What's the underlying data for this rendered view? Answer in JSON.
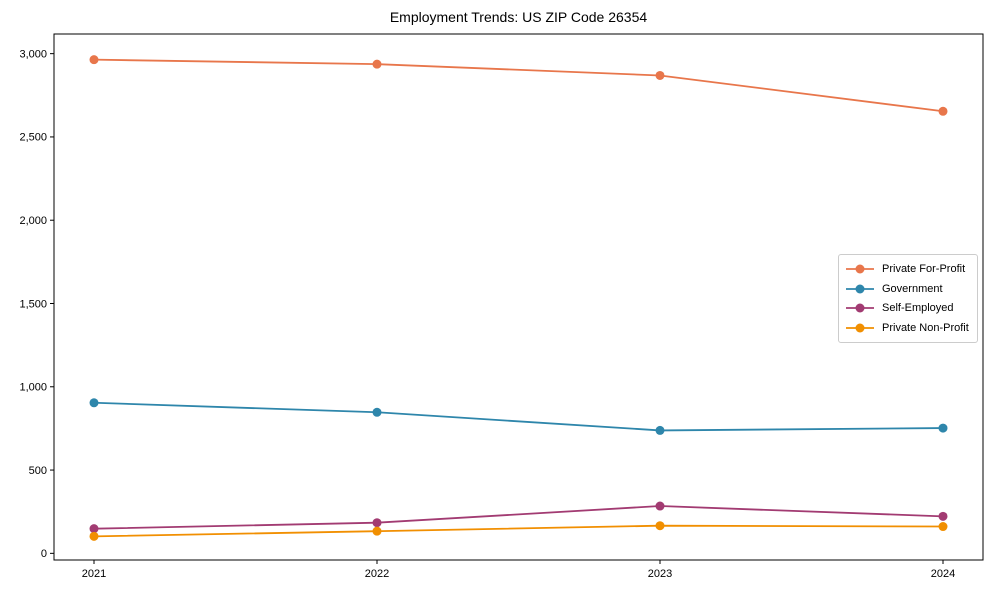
{
  "chart_data": {
    "type": "line",
    "title": "Employment Trends: US ZIP Code 26354",
    "categories": [
      "2021",
      "2022",
      "2023",
      "2024"
    ],
    "series": [
      {
        "name": "Private For-Profit",
        "color": "#E8764B",
        "values": [
          2964,
          2937,
          2869,
          2654
        ]
      },
      {
        "name": "Government",
        "color": "#2E86AB",
        "values": [
          904,
          847,
          738,
          752
        ]
      },
      {
        "name": "Self-Employed",
        "color": "#A23B72",
        "values": [
          148,
          184,
          284,
          222
        ]
      },
      {
        "name": "Private Non-Profit",
        "color": "#F18F01",
        "values": [
          102,
          133,
          166,
          161
        ]
      }
    ],
    "xlabel": "",
    "ylabel": "",
    "ylim": [
      -40,
      3118
    ],
    "yticks": [
      0,
      500,
      1000,
      1500,
      2000,
      2500,
      3000
    ],
    "ytick_labels": [
      "0",
      "500",
      "1,000",
      "1,500",
      "2,000",
      "2,500",
      "3,000"
    ],
    "grid": false,
    "legend_position": "center-right",
    "marker": "circle",
    "axis_color": "#000000"
  }
}
